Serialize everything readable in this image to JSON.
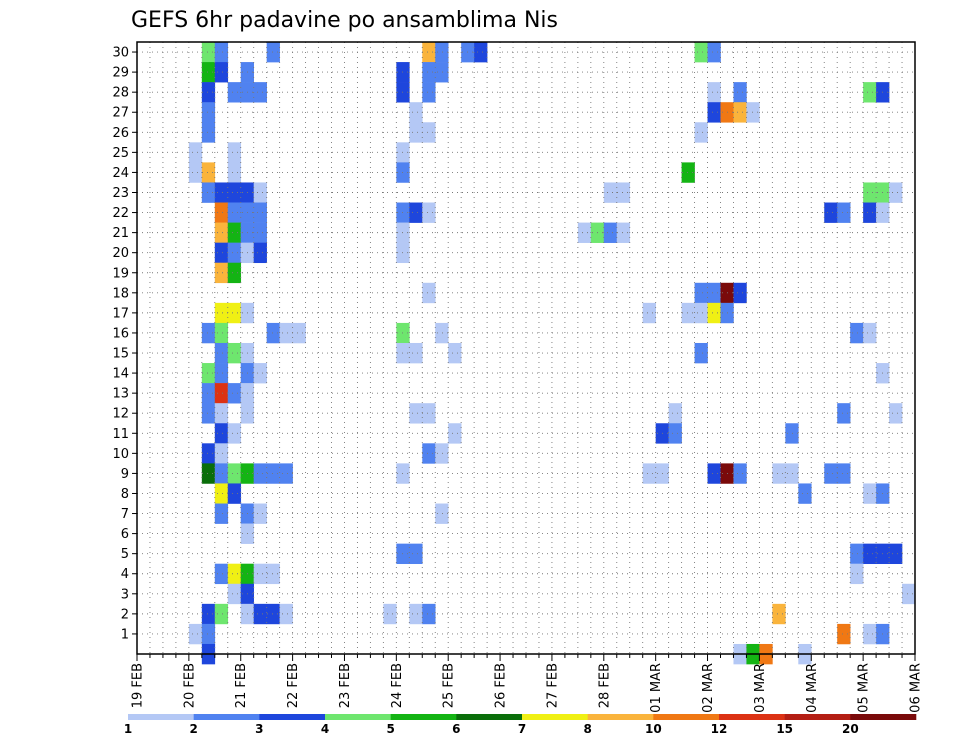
{
  "chart_data": {
    "type": "heatmap",
    "title": "GEFS 6hr padavine po ansamblima Nis",
    "y_members": [
      1,
      2,
      3,
      4,
      5,
      6,
      7,
      8,
      9,
      10,
      11,
      12,
      13,
      14,
      15,
      16,
      17,
      18,
      19,
      20,
      21,
      22,
      23,
      24,
      25,
      26,
      27,
      28,
      29,
      30
    ],
    "y_range": [
      0,
      30.5
    ],
    "x_range": [
      0,
      60
    ],
    "x_step": "6hr",
    "x_tick_labels": [
      "19 FEB",
      "20 FEB",
      "21 FEB",
      "22 FEB",
      "23 FEB",
      "24 FEB",
      "25 FEB",
      "26 FEB",
      "27 FEB",
      "28 FEB",
      "01 MAR",
      "02 MAR",
      "03 MAR",
      "04 MAR",
      "05 MAR",
      "06 MAR"
    ],
    "x_tick_positions": [
      0,
      4,
      8,
      12,
      16,
      20,
      24,
      28,
      32,
      36,
      40,
      44,
      48,
      52,
      56,
      60
    ],
    "legend": {
      "labels": [
        "1",
        "2",
        "3",
        "4",
        "5",
        "6",
        "7",
        "8",
        "10",
        "12",
        "15",
        "20"
      ],
      "colors": [
        "#b4c8f5",
        "#5082f0",
        "#1e46dc",
        "#6ee66e",
        "#14b414",
        "#0a6e0a",
        "#f0f014",
        "#fab43c",
        "#f07814",
        "#dc3214",
        "#b41e14",
        "#7a0a0a"
      ]
    },
    "cells": [
      {
        "m": 30,
        "t": 5,
        "c": 3
      },
      {
        "m": 30,
        "t": 6,
        "c": 1
      },
      {
        "m": 30,
        "t": 10,
        "c": 1
      },
      {
        "m": 30,
        "t": 22,
        "c": 7
      },
      {
        "m": 30,
        "t": 23,
        "c": 1
      },
      {
        "m": 30,
        "t": 25,
        "c": 1
      },
      {
        "m": 30,
        "t": 26,
        "c": 2
      },
      {
        "m": 30,
        "t": 43,
        "c": 3
      },
      {
        "m": 30,
        "t": 44,
        "c": 1
      },
      {
        "m": 29,
        "t": 5,
        "c": 4
      },
      {
        "m": 29,
        "t": 6,
        "c": 2
      },
      {
        "m": 29,
        "t": 8,
        "c": 1
      },
      {
        "m": 29,
        "t": 20,
        "c": 2
      },
      {
        "m": 29,
        "t": 22,
        "c": 1
      },
      {
        "m": 29,
        "t": 23,
        "c": 1
      },
      {
        "m": 28,
        "t": 5,
        "c": 2
      },
      {
        "m": 28,
        "t": 7,
        "c": 1
      },
      {
        "m": 28,
        "t": 8,
        "c": 1
      },
      {
        "m": 28,
        "t": 9,
        "c": 1
      },
      {
        "m": 28,
        "t": 20,
        "c": 2
      },
      {
        "m": 28,
        "t": 22,
        "c": 1
      },
      {
        "m": 28,
        "t": 44,
        "c": 0
      },
      {
        "m": 28,
        "t": 46,
        "c": 1
      },
      {
        "m": 28,
        "t": 56,
        "c": 3
      },
      {
        "m": 28,
        "t": 57,
        "c": 2
      },
      {
        "m": 27,
        "t": 5,
        "c": 1
      },
      {
        "m": 27,
        "t": 21,
        "c": 0
      },
      {
        "m": 27,
        "t": 44,
        "c": 2
      },
      {
        "m": 27,
        "t": 45,
        "c": 8
      },
      {
        "m": 27,
        "t": 46,
        "c": 7
      },
      {
        "m": 27,
        "t": 47,
        "c": 0
      },
      {
        "m": 26,
        "t": 5,
        "c": 1
      },
      {
        "m": 26,
        "t": 21,
        "c": 0
      },
      {
        "m": 26,
        "t": 22,
        "c": 0
      },
      {
        "m": 26,
        "t": 43,
        "c": 0
      },
      {
        "m": 25,
        "t": 4,
        "c": 0
      },
      {
        "m": 25,
        "t": 7,
        "c": 0
      },
      {
        "m": 25,
        "t": 20,
        "c": 0
      },
      {
        "m": 24,
        "t": 4,
        "c": 0
      },
      {
        "m": 24,
        "t": 5,
        "c": 7
      },
      {
        "m": 24,
        "t": 7,
        "c": 0
      },
      {
        "m": 24,
        "t": 20,
        "c": 1
      },
      {
        "m": 24,
        "t": 42,
        "c": 4
      },
      {
        "m": 23,
        "t": 5,
        "c": 1
      },
      {
        "m": 23,
        "t": 6,
        "c": 2
      },
      {
        "m": 23,
        "t": 7,
        "c": 2
      },
      {
        "m": 23,
        "t": 8,
        "c": 2
      },
      {
        "m": 23,
        "t": 9,
        "c": 0
      },
      {
        "m": 23,
        "t": 36,
        "c": 0
      },
      {
        "m": 23,
        "t": 37,
        "c": 0
      },
      {
        "m": 23,
        "t": 56,
        "c": 3
      },
      {
        "m": 23,
        "t": 57,
        "c": 3
      },
      {
        "m": 23,
        "t": 58,
        "c": 0
      },
      {
        "m": 22,
        "t": 6,
        "c": 8
      },
      {
        "m": 22,
        "t": 7,
        "c": 1
      },
      {
        "m": 22,
        "t": 8,
        "c": 1
      },
      {
        "m": 22,
        "t": 9,
        "c": 1
      },
      {
        "m": 22,
        "t": 20,
        "c": 1
      },
      {
        "m": 22,
        "t": 21,
        "c": 2
      },
      {
        "m": 22,
        "t": 22,
        "c": 0
      },
      {
        "m": 22,
        "t": 53,
        "c": 2
      },
      {
        "m": 22,
        "t": 54,
        "c": 1
      },
      {
        "m": 22,
        "t": 56,
        "c": 2
      },
      {
        "m": 22,
        "t": 57,
        "c": 0
      },
      {
        "m": 21,
        "t": 6,
        "c": 7
      },
      {
        "m": 21,
        "t": 7,
        "c": 4
      },
      {
        "m": 21,
        "t": 8,
        "c": 1
      },
      {
        "m": 21,
        "t": 9,
        "c": 1
      },
      {
        "m": 21,
        "t": 20,
        "c": 0
      },
      {
        "m": 21,
        "t": 34,
        "c": 0
      },
      {
        "m": 21,
        "t": 35,
        "c": 3
      },
      {
        "m": 21,
        "t": 36,
        "c": 1
      },
      {
        "m": 21,
        "t": 37,
        "c": 0
      },
      {
        "m": 20,
        "t": 6,
        "c": 2
      },
      {
        "m": 20,
        "t": 7,
        "c": 1
      },
      {
        "m": 20,
        "t": 8,
        "c": 0
      },
      {
        "m": 20,
        "t": 9,
        "c": 2
      },
      {
        "m": 20,
        "t": 20,
        "c": 0
      },
      {
        "m": 19,
        "t": 6,
        "c": 7
      },
      {
        "m": 19,
        "t": 7,
        "c": 4
      },
      {
        "m": 18,
        "t": 22,
        "c": 0
      },
      {
        "m": 18,
        "t": 43,
        "c": 1
      },
      {
        "m": 18,
        "t": 44,
        "c": 1
      },
      {
        "m": 18,
        "t": 45,
        "c": 11
      },
      {
        "m": 18,
        "t": 46,
        "c": 2
      },
      {
        "m": 17,
        "t": 6,
        "c": 6
      },
      {
        "m": 17,
        "t": 7,
        "c": 6
      },
      {
        "m": 17,
        "t": 8,
        "c": 0
      },
      {
        "m": 17,
        "t": 39,
        "c": 0
      },
      {
        "m": 17,
        "t": 42,
        "c": 0
      },
      {
        "m": 17,
        "t": 43,
        "c": 0
      },
      {
        "m": 17,
        "t": 44,
        "c": 6
      },
      {
        "m": 17,
        "t": 45,
        "c": 1
      },
      {
        "m": 16,
        "t": 5,
        "c": 1
      },
      {
        "m": 16,
        "t": 6,
        "c": 3
      },
      {
        "m": 16,
        "t": 10,
        "c": 1
      },
      {
        "m": 16,
        "t": 11,
        "c": 0
      },
      {
        "m": 16,
        "t": 12,
        "c": 0
      },
      {
        "m": 16,
        "t": 20,
        "c": 3
      },
      {
        "m": 16,
        "t": 23,
        "c": 0
      },
      {
        "m": 16,
        "t": 55,
        "c": 1
      },
      {
        "m": 16,
        "t": 56,
        "c": 0
      },
      {
        "m": 15,
        "t": 6,
        "c": 1
      },
      {
        "m": 15,
        "t": 7,
        "c": 3
      },
      {
        "m": 15,
        "t": 8,
        "c": 0
      },
      {
        "m": 15,
        "t": 20,
        "c": 0
      },
      {
        "m": 15,
        "t": 21,
        "c": 0
      },
      {
        "m": 15,
        "t": 24,
        "c": 0
      },
      {
        "m": 15,
        "t": 43,
        "c": 1
      },
      {
        "m": 14,
        "t": 5,
        "c": 3
      },
      {
        "m": 14,
        "t": 6,
        "c": 1
      },
      {
        "m": 14,
        "t": 8,
        "c": 1
      },
      {
        "m": 14,
        "t": 9,
        "c": 0
      },
      {
        "m": 14,
        "t": 57,
        "c": 0
      },
      {
        "m": 13,
        "t": 5,
        "c": 1
      },
      {
        "m": 13,
        "t": 6,
        "c": 9
      },
      {
        "m": 13,
        "t": 7,
        "c": 1
      },
      {
        "m": 13,
        "t": 8,
        "c": 0
      },
      {
        "m": 12,
        "t": 5,
        "c": 1
      },
      {
        "m": 12,
        "t": 6,
        "c": 0
      },
      {
        "m": 12,
        "t": 8,
        "c": 0
      },
      {
        "m": 12,
        "t": 21,
        "c": 0
      },
      {
        "m": 12,
        "t": 22,
        "c": 0
      },
      {
        "m": 12,
        "t": 41,
        "c": 0
      },
      {
        "m": 12,
        "t": 54,
        "c": 1
      },
      {
        "m": 12,
        "t": 58,
        "c": 0
      },
      {
        "m": 11,
        "t": 6,
        "c": 2
      },
      {
        "m": 11,
        "t": 7,
        "c": 0
      },
      {
        "m": 11,
        "t": 24,
        "c": 0
      },
      {
        "m": 11,
        "t": 40,
        "c": 2
      },
      {
        "m": 11,
        "t": 41,
        "c": 1
      },
      {
        "m": 11,
        "t": 50,
        "c": 1
      },
      {
        "m": 10,
        "t": 5,
        "c": 2
      },
      {
        "m": 10,
        "t": 6,
        "c": 0
      },
      {
        "m": 10,
        "t": 22,
        "c": 1
      },
      {
        "m": 10,
        "t": 23,
        "c": 0
      },
      {
        "m": 9,
        "t": 5,
        "c": 5
      },
      {
        "m": 9,
        "t": 6,
        "c": 1
      },
      {
        "m": 9,
        "t": 7,
        "c": 3
      },
      {
        "m": 9,
        "t": 8,
        "c": 4
      },
      {
        "m": 9,
        "t": 9,
        "c": 1
      },
      {
        "m": 9,
        "t": 10,
        "c": 1
      },
      {
        "m": 9,
        "t": 11,
        "c": 1
      },
      {
        "m": 9,
        "t": 20,
        "c": 0
      },
      {
        "m": 9,
        "t": 39,
        "c": 0
      },
      {
        "m": 9,
        "t": 40,
        "c": 0
      },
      {
        "m": 9,
        "t": 44,
        "c": 2
      },
      {
        "m": 9,
        "t": 45,
        "c": 11
      },
      {
        "m": 9,
        "t": 46,
        "c": 1
      },
      {
        "m": 9,
        "t": 49,
        "c": 0
      },
      {
        "m": 9,
        "t": 50,
        "c": 0
      },
      {
        "m": 9,
        "t": 53,
        "c": 1
      },
      {
        "m": 9,
        "t": 54,
        "c": 1
      },
      {
        "m": 8,
        "t": 6,
        "c": 6
      },
      {
        "m": 8,
        "t": 7,
        "c": 2
      },
      {
        "m": 8,
        "t": 51,
        "c": 1
      },
      {
        "m": 8,
        "t": 56,
        "c": 0
      },
      {
        "m": 8,
        "t": 57,
        "c": 1
      },
      {
        "m": 7,
        "t": 6,
        "c": 1
      },
      {
        "m": 7,
        "t": 8,
        "c": 1
      },
      {
        "m": 7,
        "t": 9,
        "c": 0
      },
      {
        "m": 7,
        "t": 23,
        "c": 0
      },
      {
        "m": 6,
        "t": 8,
        "c": 0
      },
      {
        "m": 5,
        "t": 20,
        "c": 1
      },
      {
        "m": 5,
        "t": 21,
        "c": 1
      },
      {
        "m": 5,
        "t": 55,
        "c": 1
      },
      {
        "m": 5,
        "t": 56,
        "c": 2
      },
      {
        "m": 5,
        "t": 57,
        "c": 2
      },
      {
        "m": 5,
        "t": 58,
        "c": 2
      },
      {
        "m": 4,
        "t": 6,
        "c": 1
      },
      {
        "m": 4,
        "t": 7,
        "c": 6
      },
      {
        "m": 4,
        "t": 8,
        "c": 4
      },
      {
        "m": 4,
        "t": 9,
        "c": 0
      },
      {
        "m": 4,
        "t": 10,
        "c": 0
      },
      {
        "m": 4,
        "t": 55,
        "c": 0
      },
      {
        "m": 3,
        "t": 7,
        "c": 0
      },
      {
        "m": 3,
        "t": 8,
        "c": 2
      },
      {
        "m": 3,
        "t": 59,
        "c": 0
      },
      {
        "m": 2,
        "t": 5,
        "c": 2
      },
      {
        "m": 2,
        "t": 6,
        "c": 3
      },
      {
        "m": 2,
        "t": 8,
        "c": 0
      },
      {
        "m": 2,
        "t": 9,
        "c": 2
      },
      {
        "m": 2,
        "t": 10,
        "c": 2
      },
      {
        "m": 2,
        "t": 11,
        "c": 0
      },
      {
        "m": 2,
        "t": 19,
        "c": 0
      },
      {
        "m": 2,
        "t": 21,
        "c": 0
      },
      {
        "m": 2,
        "t": 22,
        "c": 1
      },
      {
        "m": 2,
        "t": 49,
        "c": 7
      },
      {
        "m": 1,
        "t": 4,
        "c": 0
      },
      {
        "m": 1,
        "t": 5,
        "c": 1
      },
      {
        "m": 1,
        "t": 54,
        "c": 8
      },
      {
        "m": 1,
        "t": 56,
        "c": 0
      },
      {
        "m": 1,
        "t": 57,
        "c": 1
      },
      {
        "m": 0,
        "t": 5,
        "c": 2
      },
      {
        "m": 0,
        "t": 46,
        "c": 0
      },
      {
        "m": 0,
        "t": 47,
        "c": 4
      },
      {
        "m": 0,
        "t": 48,
        "c": 8
      },
      {
        "m": 0,
        "t": 51,
        "c": 0
      }
    ]
  }
}
